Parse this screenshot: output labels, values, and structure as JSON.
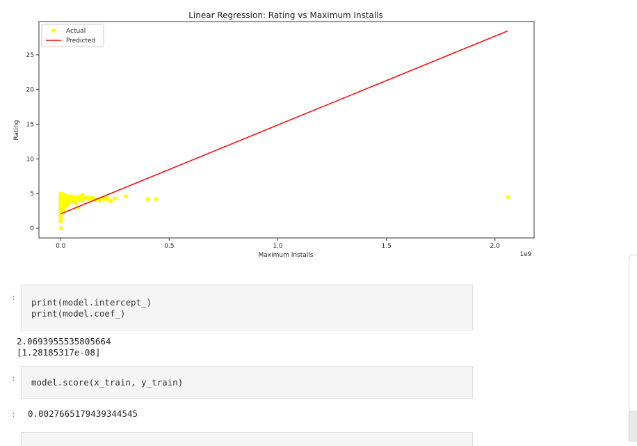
{
  "chart_data": {
    "type": "scatter",
    "title": "Linear Regression: Rating vs Maximum Installs",
    "xlabel": "Maximum Installs",
    "ylabel": "Rating",
    "x_offset_label": "1e9",
    "xlim": [
      -0.1,
      2.18
    ],
    "ylim": [
      -1.4,
      29.8
    ],
    "xticks": [
      0.0,
      0.5,
      1.0,
      1.5,
      2.0
    ],
    "xtick_labels": [
      "0.0",
      "0.5",
      "1.0",
      "1.5",
      "2.0"
    ],
    "yticks": [
      0,
      5,
      10,
      15,
      20,
      25
    ],
    "ytick_labels": [
      "0",
      "5",
      "10",
      "15",
      "20",
      "25"
    ],
    "grid": false,
    "legend_position": "top-left",
    "series": [
      {
        "name": "Actual",
        "kind": "scatter",
        "color": "#ffff00",
        "points": [
          [
            0.0,
            5.0
          ],
          [
            0.0,
            4.8
          ],
          [
            0.0,
            4.6
          ],
          [
            0.0,
            4.4
          ],
          [
            0.0,
            4.2
          ],
          [
            0.0,
            4.0
          ],
          [
            0.0,
            3.8
          ],
          [
            0.0,
            3.6
          ],
          [
            0.0,
            3.4
          ],
          [
            0.0,
            3.2
          ],
          [
            0.0,
            3.0
          ],
          [
            0.0,
            2.8
          ],
          [
            0.0,
            2.6
          ],
          [
            0.0,
            2.4
          ],
          [
            0.0,
            2.2
          ],
          [
            0.0,
            2.0
          ],
          [
            0.0,
            1.8
          ],
          [
            0.0,
            1.6
          ],
          [
            0.0,
            1.4
          ],
          [
            0.0,
            1.0
          ],
          [
            0.0,
            0.0
          ],
          [
            0.01,
            4.9
          ],
          [
            0.01,
            4.5
          ],
          [
            0.01,
            4.1
          ],
          [
            0.01,
            3.7
          ],
          [
            0.01,
            3.3
          ],
          [
            0.01,
            2.9
          ],
          [
            0.01,
            2.5
          ],
          [
            0.02,
            4.7
          ],
          [
            0.02,
            4.3
          ],
          [
            0.02,
            3.9
          ],
          [
            0.02,
            3.5
          ],
          [
            0.02,
            3.1
          ],
          [
            0.03,
            4.6
          ],
          [
            0.03,
            4.2
          ],
          [
            0.03,
            3.8
          ],
          [
            0.03,
            3.4
          ],
          [
            0.04,
            4.5
          ],
          [
            0.04,
            4.1
          ],
          [
            0.04,
            3.7
          ],
          [
            0.05,
            4.6
          ],
          [
            0.05,
            4.2
          ],
          [
            0.05,
            3.9
          ],
          [
            0.06,
            4.4
          ],
          [
            0.06,
            4.0
          ],
          [
            0.07,
            4.5
          ],
          [
            0.07,
            4.1
          ],
          [
            0.07,
            3.6
          ],
          [
            0.08,
            4.3
          ],
          [
            0.08,
            2.9
          ],
          [
            0.09,
            4.6
          ],
          [
            0.09,
            4.0
          ],
          [
            0.1,
            4.8
          ],
          [
            0.1,
            4.4
          ],
          [
            0.1,
            4.1
          ],
          [
            0.11,
            4.3
          ],
          [
            0.12,
            4.5
          ],
          [
            0.13,
            4.2
          ],
          [
            0.14,
            4.4
          ],
          [
            0.15,
            4.3
          ],
          [
            0.16,
            4.1
          ],
          [
            0.17,
            4.2
          ],
          [
            0.18,
            4.0
          ],
          [
            0.19,
            4.3
          ],
          [
            0.2,
            4.2
          ],
          [
            0.21,
            4.5
          ],
          [
            0.22,
            4.1
          ],
          [
            0.23,
            3.9
          ],
          [
            0.25,
            4.3
          ],
          [
            0.3,
            4.6
          ],
          [
            0.4,
            4.2
          ],
          [
            0.44,
            4.2
          ],
          [
            2.06,
            4.5
          ]
        ]
      },
      {
        "name": "Predicted",
        "kind": "line",
        "color": "#ff0000",
        "points": [
          [
            0.0,
            2.07
          ],
          [
            2.06,
            28.47
          ]
        ]
      }
    ]
  },
  "cells": [
    {
      "type": "code",
      "lines": [
        "print(model.intercept_)",
        "print(model.coef_)"
      ],
      "output": [
        "2.0693955535805664",
        "[1.28185317e-08]"
      ]
    },
    {
      "type": "code",
      "lines": [
        "model.score(x_train, y_train)"
      ],
      "output": [
        "0.0027665179439344545"
      ]
    }
  ]
}
